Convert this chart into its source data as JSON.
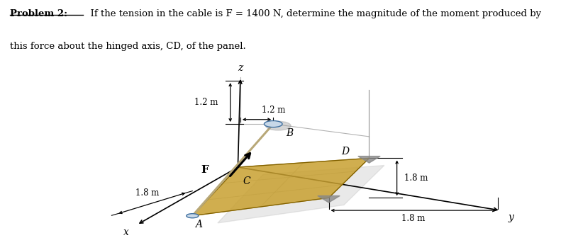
{
  "bg_color": "#ffffff",
  "fig_width": 7.91,
  "fig_height": 3.53,
  "title_bold": "Problem 2:",
  "title_rest_line1": "  If the tension in the cable is F = 1400 N, determine the magnitude of the moment produced by",
  "title_line2": "this force about the hinged axis, CD, of the panel.",
  "labels": {
    "z": "z",
    "x": "x",
    "y": "y",
    "B": "B",
    "C": "C",
    "D": "D",
    "A": "A",
    "F": "F"
  },
  "panel_color": "#c8a030",
  "panel_alpha": 0.85,
  "cable_color": "#b8a878",
  "shadow_color": "#aaaaaa",
  "dim_fs": 8.5,
  "label_fs": 10,
  "title_fs": 9.5
}
